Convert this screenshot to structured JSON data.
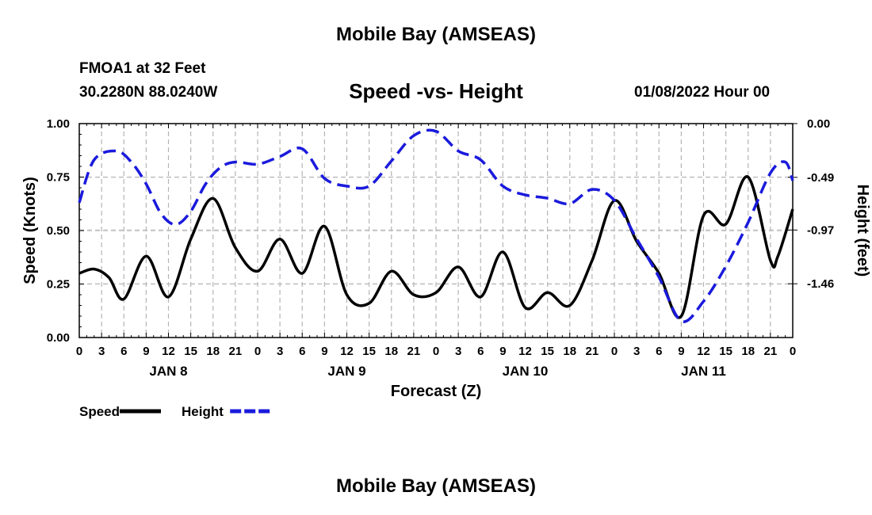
{
  "title": "Mobile Bay (AMSEAS)",
  "station": "FMOA1 at 32 Feet",
  "coords": "30.2280N  88.0240W",
  "subtitle": "Speed -vs- Height",
  "datetime": "01/08/2022 Hour 00",
  "bottom_title": "Mobile Bay (AMSEAS)",
  "chart_data": {
    "type": "line",
    "xlabel": "Forecast (Z)",
    "x_tick_labels": [
      "0",
      "3",
      "6",
      "9",
      "12",
      "15",
      "18",
      "21",
      "0",
      "3",
      "6",
      "9",
      "12",
      "15",
      "18",
      "21",
      "0",
      "3",
      "6",
      "9",
      "12",
      "15",
      "18",
      "21",
      "0",
      "3",
      "6",
      "9",
      "12",
      "15",
      "18",
      "21",
      "0"
    ],
    "day_labels": [
      {
        "hour": 12,
        "label": "JAN 8"
      },
      {
        "hour": 36,
        "label": "JAN 9"
      },
      {
        "hour": 60,
        "label": "JAN 10"
      },
      {
        "hour": 84,
        "label": "JAN 11"
      }
    ],
    "xlim": [
      0,
      96
    ],
    "y_left": {
      "label": "Speed (Knots)",
      "lim": [
        0,
        1
      ],
      "ticks": [
        0,
        0.25,
        0.5,
        0.75,
        1
      ],
      "tick_labels": [
        "0.00",
        "0.25",
        "0.50",
        "0.75",
        "1.00"
      ]
    },
    "y_right": {
      "label": "Height (feet)",
      "lim": [
        -1.95,
        0
      ],
      "ticks": [
        0,
        -0.49,
        -0.97,
        -1.46
      ],
      "tick_labels": [
        "0.00",
        "-0.49",
        "-0.97",
        "-1.46"
      ]
    },
    "series": [
      {
        "name": "Speed",
        "color": "#000000",
        "dash": "solid",
        "axis": "left",
        "x": [
          0,
          2,
          4,
          6,
          9,
          12,
          15,
          18,
          21,
          24,
          27,
          30,
          33,
          36,
          39,
          42,
          45,
          48,
          51,
          54,
          57,
          60,
          63,
          66,
          69,
          72,
          75,
          78,
          81,
          84,
          87,
          90,
          93,
          94,
          96
        ],
        "values": [
          0.3,
          0.32,
          0.28,
          0.18,
          0.38,
          0.19,
          0.46,
          0.65,
          0.42,
          0.31,
          0.46,
          0.3,
          0.52,
          0.2,
          0.16,
          0.31,
          0.2,
          0.21,
          0.33,
          0.19,
          0.4,
          0.14,
          0.21,
          0.15,
          0.36,
          0.64,
          0.45,
          0.3,
          0.1,
          0.57,
          0.53,
          0.75,
          0.36,
          0.38,
          0.6
        ]
      },
      {
        "name": "Height",
        "color": "#1a1adc",
        "dash": "dashed",
        "axis": "right",
        "x": [
          0,
          2,
          5,
          7,
          9,
          11,
          13,
          15,
          17,
          19,
          21,
          24,
          27,
          30,
          33,
          36,
          39,
          42,
          45,
          48,
          51,
          54,
          57,
          60,
          63,
          66,
          69,
          72,
          75,
          78,
          81,
          84,
          87,
          90,
          93,
          95,
          96
        ],
        "values": [
          -0.72,
          -0.33,
          -0.25,
          -0.35,
          -0.55,
          -0.82,
          -0.92,
          -0.8,
          -0.55,
          -0.4,
          -0.35,
          -0.37,
          -0.3,
          -0.23,
          -0.5,
          -0.57,
          -0.57,
          -0.34,
          -0.11,
          -0.07,
          -0.25,
          -0.33,
          -0.57,
          -0.65,
          -0.68,
          -0.73,
          -0.6,
          -0.7,
          -1.05,
          -1.4,
          -1.8,
          -1.62,
          -1.3,
          -0.9,
          -0.45,
          -0.35,
          -0.52
        ]
      }
    ],
    "legend": {
      "position": "bottom-left",
      "entries": [
        {
          "label": "Speed",
          "color": "#000000",
          "dash": "solid"
        },
        {
          "label": "Height",
          "color": "#1a1adc",
          "dash": "dashed"
        }
      ]
    },
    "grid": true
  }
}
